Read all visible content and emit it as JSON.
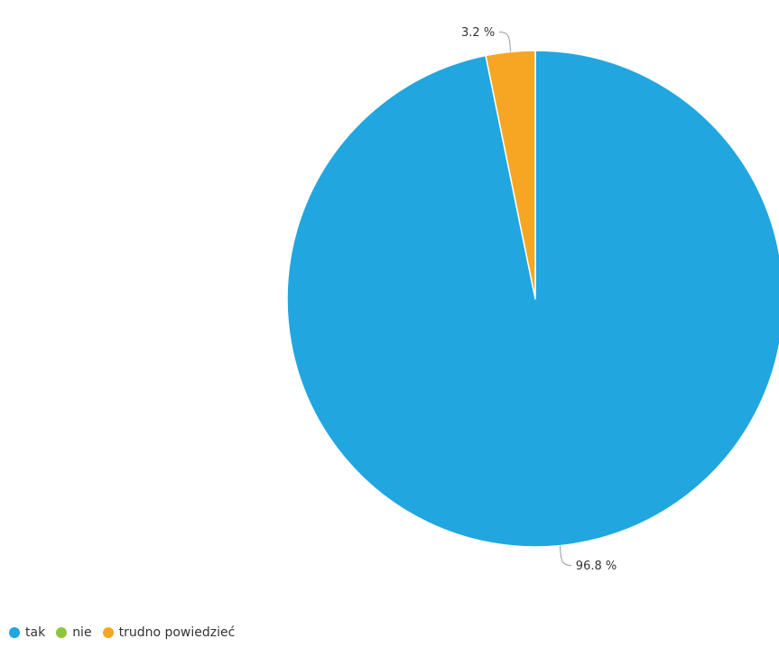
{
  "chart_data": {
    "type": "pie",
    "categories": [
      "tak",
      "nie",
      "trudno powiedzieć"
    ],
    "values": [
      96.8,
      0,
      3.2
    ],
    "value_labels": [
      "96.8 %",
      "",
      "3.2 %"
    ],
    "colors": [
      "#21a6e0",
      "#8cc63f",
      "#f6a623"
    ],
    "legend_position": "bottom-left"
  },
  "legend": {
    "items": [
      {
        "label": "tak",
        "color": "#21a6e0"
      },
      {
        "label": "nie",
        "color": "#8cc63f"
      },
      {
        "label": "trudno powiedzieć",
        "color": "#f6a623"
      }
    ]
  }
}
